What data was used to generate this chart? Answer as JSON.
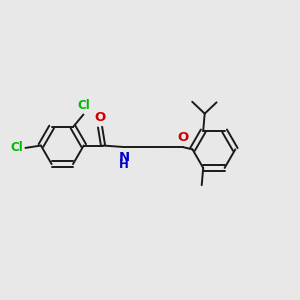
{
  "background_color": "#e8e8e8",
  "bond_color": "#1a1a1a",
  "cl_color": "#00bb00",
  "o_color": "#cc0000",
  "n_color": "#0000cc",
  "line_width": 1.4,
  "font_size": 8.5,
  "figsize": [
    3.0,
    3.0
  ],
  "dpi": 100,
  "xlim": [
    0,
    10
  ],
  "ylim": [
    0,
    10
  ]
}
